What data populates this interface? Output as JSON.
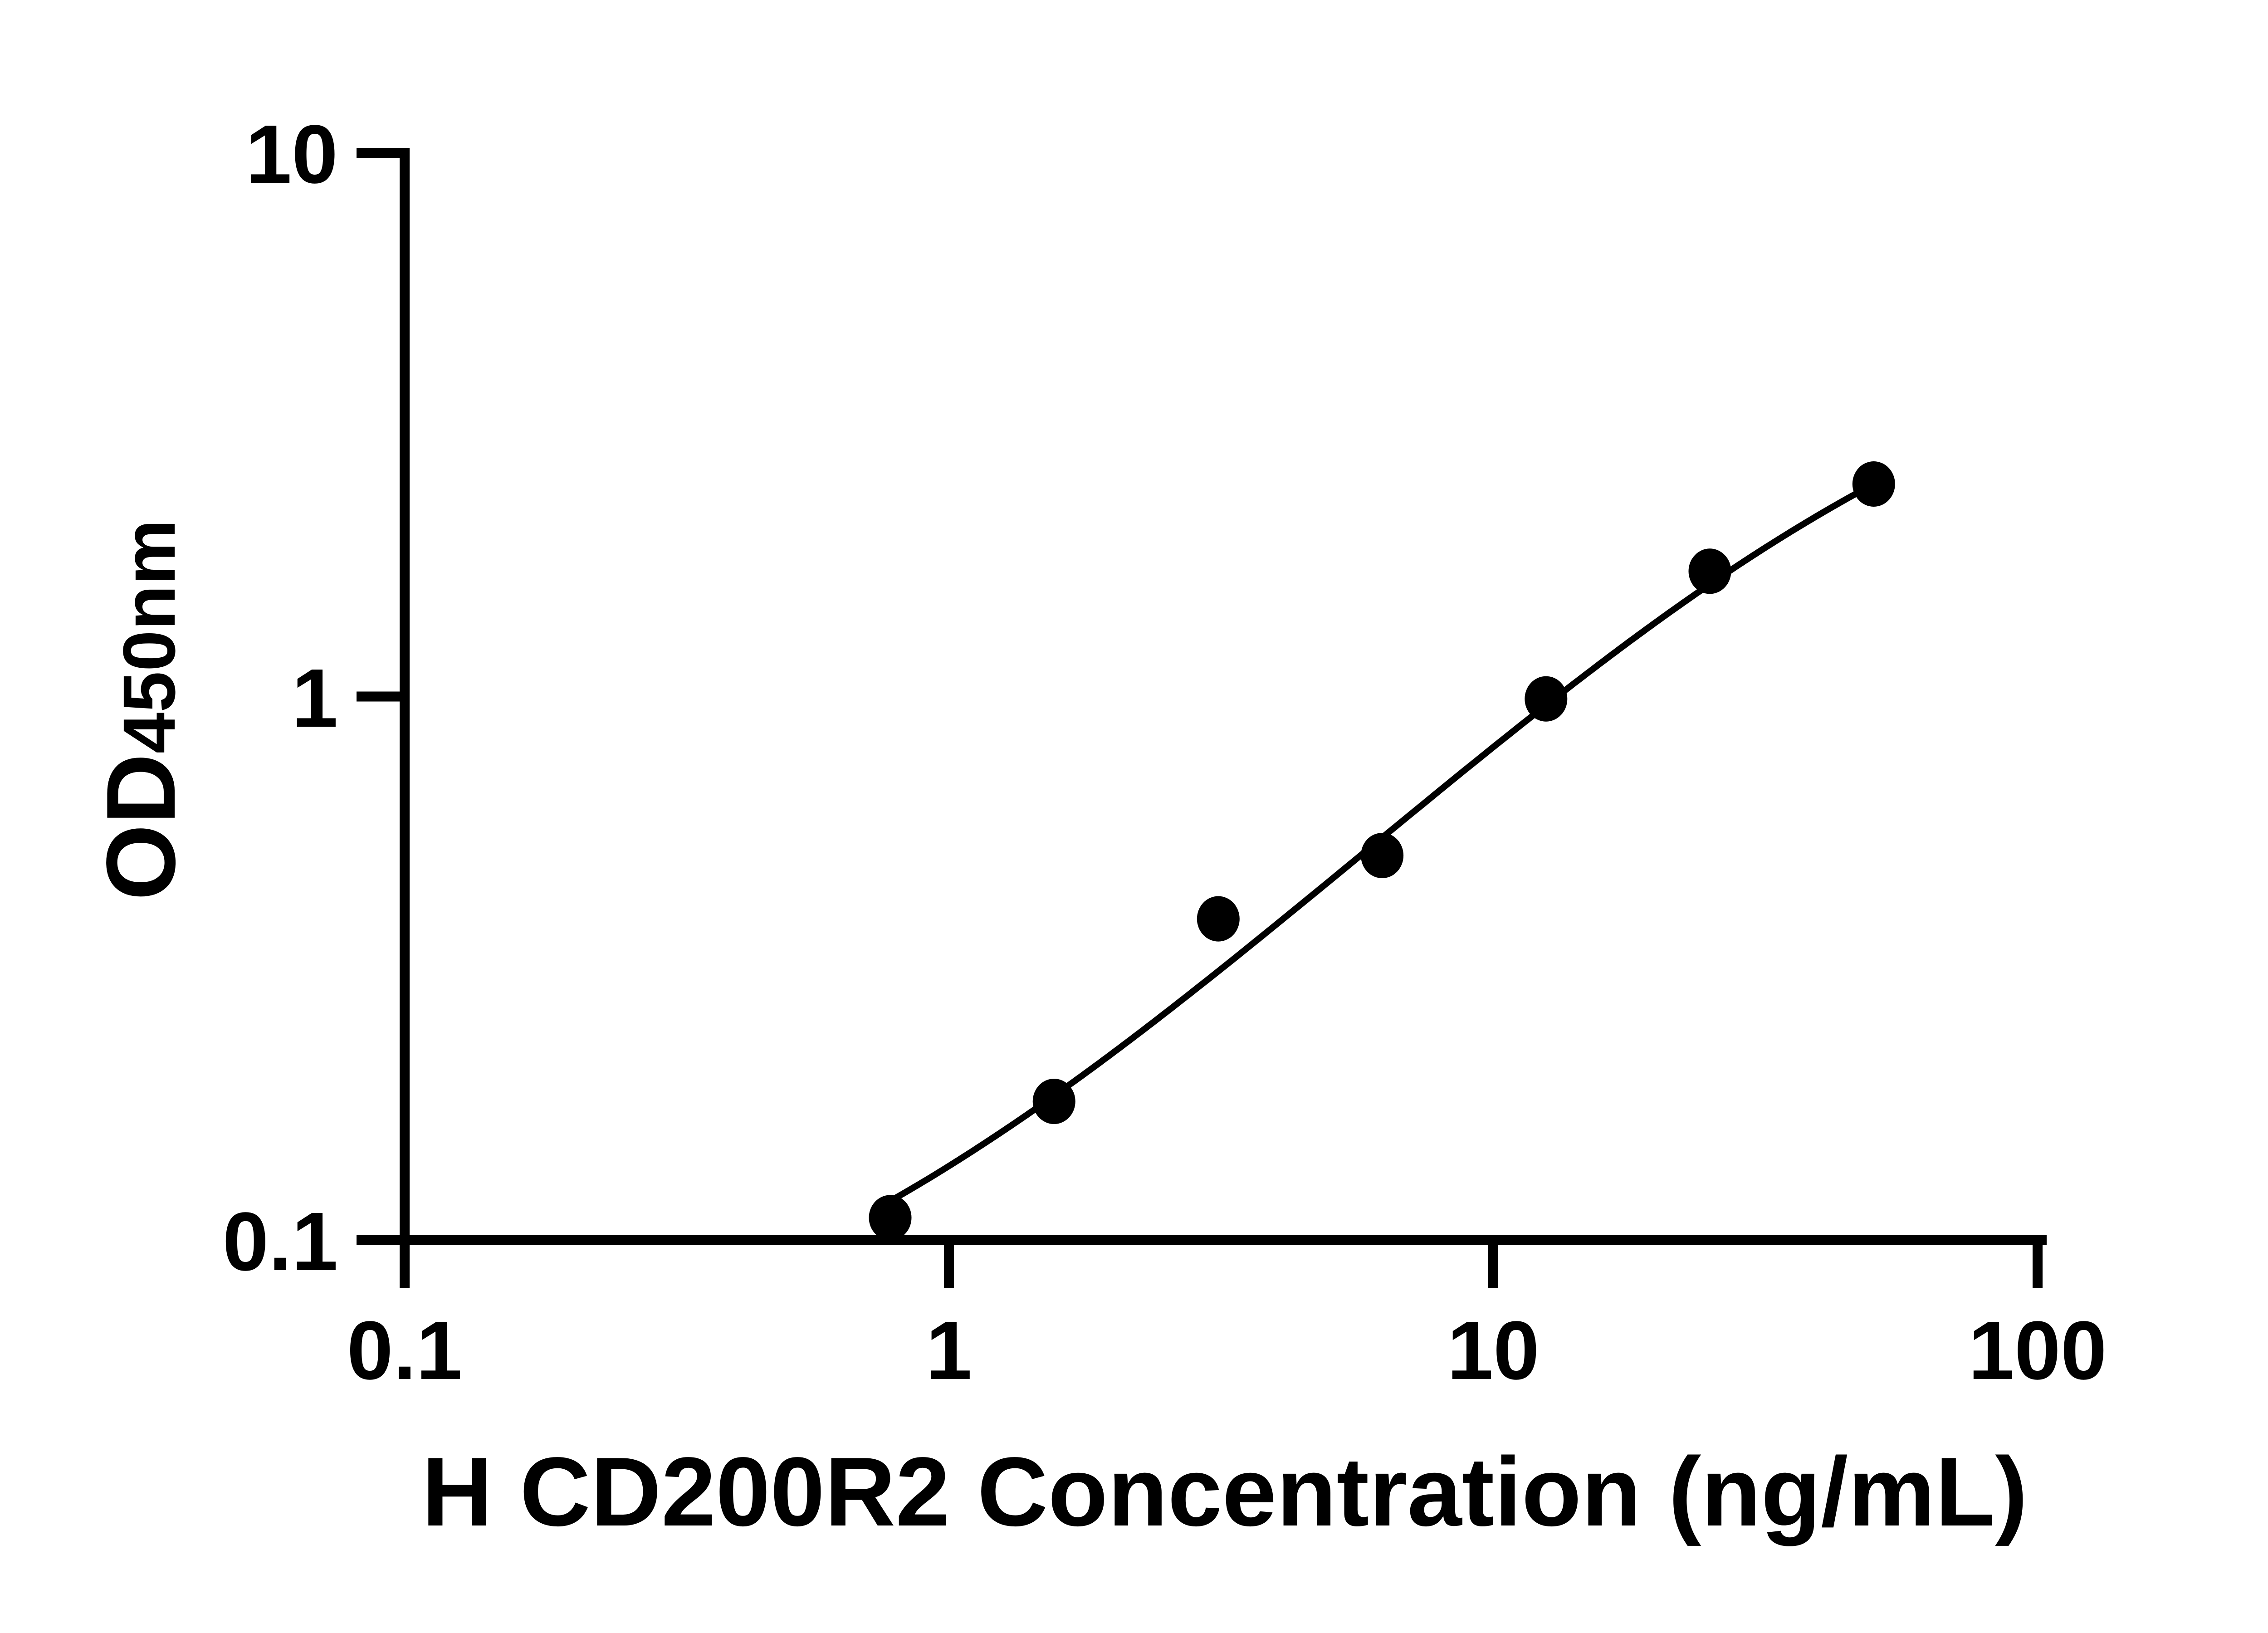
{
  "chart_data": {
    "type": "scatter",
    "title": "",
    "xlabel": "H CD200R2 Concentration (ng/mL)",
    "ylabel": "OD450nm",
    "ylabel_main": "OD",
    "ylabel_sub": "450nm",
    "xscale": "log10",
    "yscale": "log10",
    "xlim": [
      0.1,
      100
    ],
    "ylim": [
      0.1,
      10
    ],
    "grid": false,
    "legend": false,
    "marker_color": "#000000",
    "line_color": "#000000",
    "axis_color": "#000000",
    "background_color": "#ffffff",
    "x_ticks": [
      {
        "value": 0.1,
        "label": "0.1"
      },
      {
        "value": 1,
        "label": "1"
      },
      {
        "value": 10,
        "label": "10"
      },
      {
        "value": 100,
        "label": "100"
      }
    ],
    "y_ticks": [
      {
        "value": 10,
        "label": "10"
      },
      {
        "value": 1,
        "label": "1"
      },
      {
        "value": 0.1,
        "label": "0.1"
      }
    ],
    "points": [
      {
        "x": 0.78,
        "y": 0.11
      },
      {
        "x": 1.56,
        "y": 0.18
      },
      {
        "x": 3.125,
        "y": 0.39
      },
      {
        "x": 6.25,
        "y": 0.51
      },
      {
        "x": 12.5,
        "y": 0.99
      },
      {
        "x": 25,
        "y": 1.7
      },
      {
        "x": 50,
        "y": 2.46
      }
    ],
    "fit_curve": {
      "model": "4PL",
      "bottom": 0.05,
      "top": 5.35,
      "ec50": 60,
      "hill": 1.0,
      "x_start": 0.78,
      "x_end": 50
    }
  }
}
